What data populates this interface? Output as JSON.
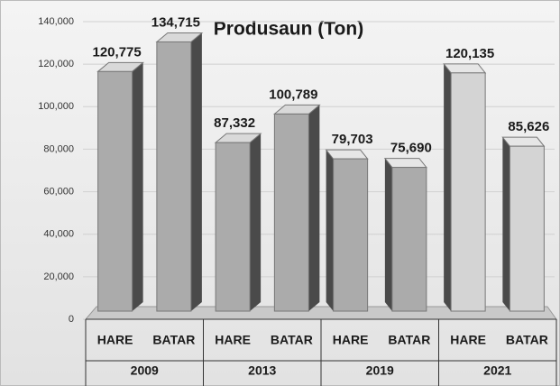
{
  "chart_data": {
    "type": "bar",
    "title": "Produsaun (Ton)",
    "categories": [
      "HARE",
      "BATAR",
      "HARE",
      "BATAR",
      "HARE",
      "BATAR",
      "HARE",
      "BATAR"
    ],
    "groups": [
      "2009",
      "2013",
      "2019",
      "2021"
    ],
    "values": [
      120775,
      134715,
      87332,
      100789,
      79703,
      75690,
      120135,
      85626
    ],
    "value_labels": [
      "120,775",
      "134,715",
      "87,332",
      "100,789",
      "79,703",
      "75,690",
      "120,135",
      "85,626"
    ],
    "color": "#ababab",
    "ylim": [
      0,
      140000
    ],
    "yticks": [
      0,
      {
        "value": 20000,
        "label": "20,000"
      },
      {
        "value": 40000,
        "label": "40,000"
      },
      {
        "value": 60000,
        "label": "60,000"
      },
      {
        "value": 80000,
        "label": "80,000"
      },
      {
        "value": 100000,
        "label": "100,000"
      },
      {
        "value": 120000,
        "label": "120,000"
      },
      {
        "value": 140000,
        "label": "140,000"
      }
    ],
    "grid": true
  }
}
